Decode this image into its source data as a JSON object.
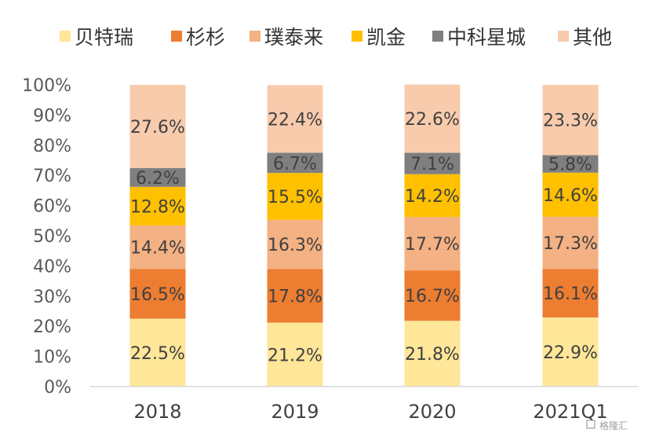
{
  "chart_data": {
    "type": "bar",
    "stacked": true,
    "percent_stacked": true,
    "categories": [
      "2018",
      "2019",
      "2020",
      "2021Q1"
    ],
    "series": [
      {
        "name": "贝特瑞",
        "color": "#FFE699",
        "values": [
          22.5,
          21.2,
          21.8,
          22.9
        ]
      },
      {
        "name": "杉杉",
        "color": "#ED7D31",
        "values": [
          16.5,
          17.8,
          16.7,
          16.1
        ]
      },
      {
        "name": "璞泰来",
        "color": "#F4B183",
        "values": [
          14.4,
          16.3,
          17.7,
          17.3
        ]
      },
      {
        "name": "凯金",
        "color": "#FFC000",
        "values": [
          12.8,
          15.5,
          14.2,
          14.6
        ]
      },
      {
        "name": "中科星城",
        "color": "#7F7F7F",
        "values": [
          6.2,
          6.7,
          7.1,
          5.8
        ]
      },
      {
        "name": "其他",
        "color": "#F8CBAD",
        "values": [
          27.6,
          22.4,
          22.6,
          23.3
        ]
      }
    ],
    "data_labels": [
      [
        "22.5%",
        "21.2%",
        "21.8%",
        "22.9%"
      ],
      [
        "16.5%",
        "17.8%",
        "16.7%",
        "16.1%"
      ],
      [
        "14.4%",
        "16.3%",
        "17.7%",
        "17.3%"
      ],
      [
        "12.8%",
        "15.5%",
        "14.2%",
        "14.6%"
      ],
      [
        "6.2%",
        "6.7%",
        "7.1%",
        "5.8%"
      ],
      [
        "27.6%",
        "22.4%",
        "22.6%",
        "23.3%"
      ]
    ],
    "y_ticks": [
      "0%",
      "10%",
      "20%",
      "30%",
      "40%",
      "50%",
      "60%",
      "70%",
      "80%",
      "90%",
      "100%"
    ],
    "ylim": [
      0,
      100
    ],
    "title": "",
    "xlabel": "",
    "ylabel": "",
    "grid": false,
    "legend_position": "top"
  },
  "watermark": "格隆汇"
}
